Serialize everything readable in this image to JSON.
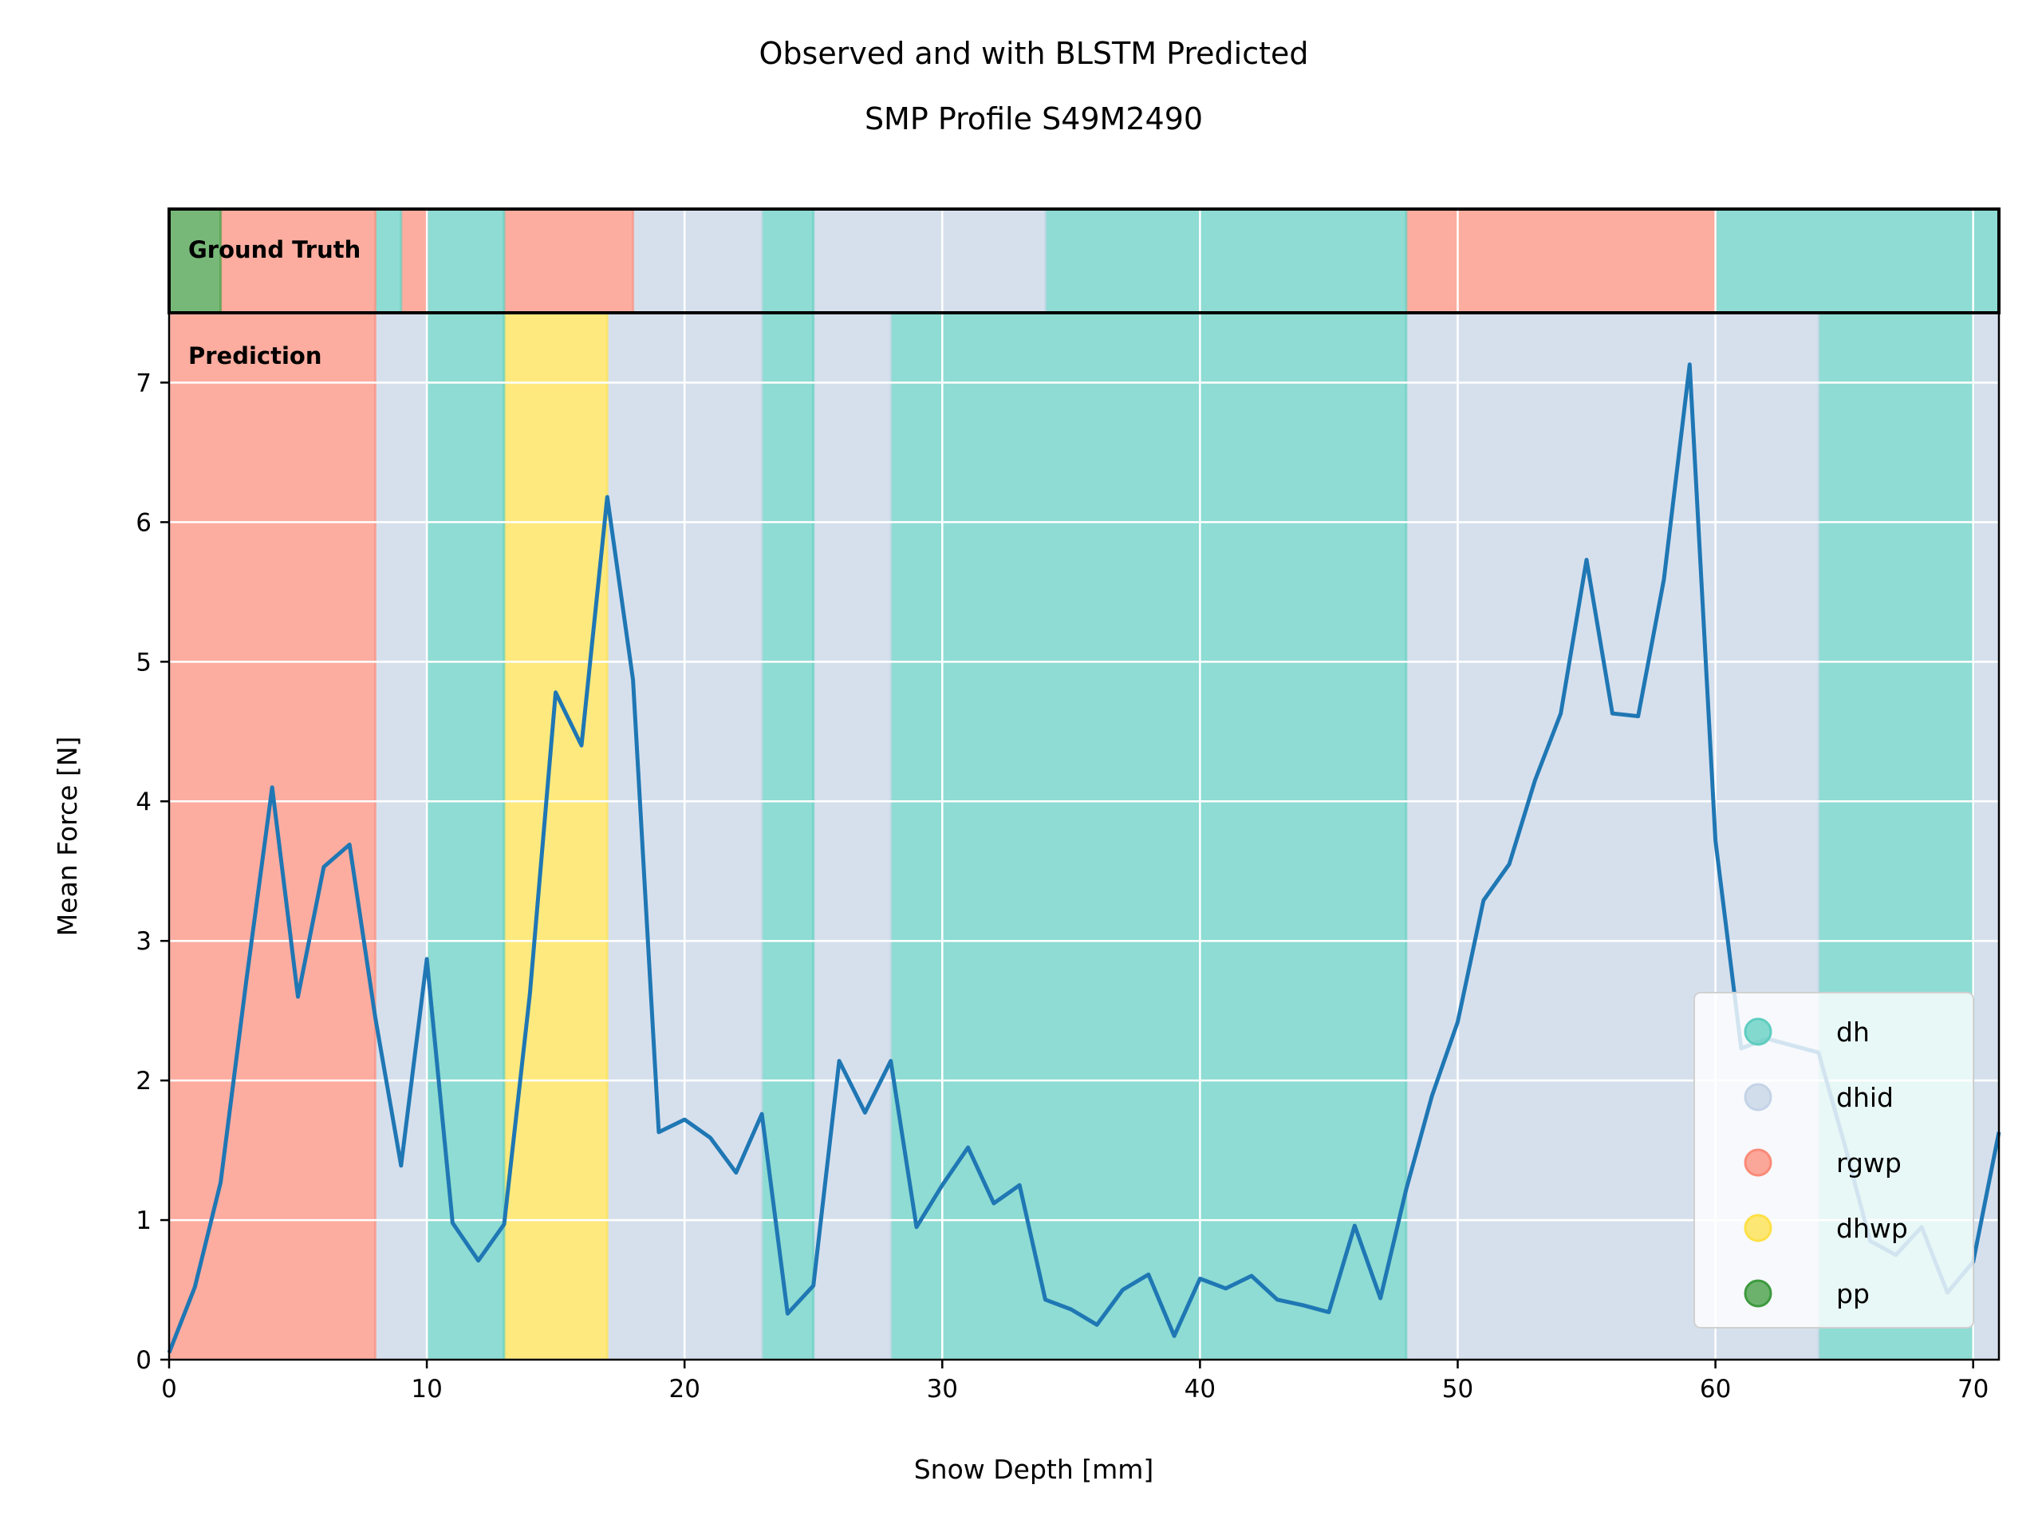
{
  "chart_data": {
    "type": "line",
    "title": [
      "Observed and with BLSTM Predicted",
      "SMP Profile S49M2490"
    ],
    "xlabel": "Snow Depth [mm]",
    "ylabel": "Mean Force [N]",
    "xlim": [
      0,
      71
    ],
    "ylim": [
      0,
      7.5
    ],
    "xticks": [
      "0",
      "10",
      "20",
      "30",
      "40",
      "50",
      "60",
      "70"
    ],
    "yticks": [
      "0",
      "1",
      "2",
      "3",
      "4",
      "5",
      "6",
      "7"
    ],
    "grid": true,
    "panel_labels": {
      "ground_truth": "Ground Truth",
      "prediction": "Prediction"
    },
    "legend": {
      "position": "lower-right",
      "entries": [
        {
          "label": "dh",
          "color": "#5ecdc0"
        },
        {
          "label": "dhid",
          "color": "#c4d3e6"
        },
        {
          "label": "rgwp",
          "color": "#fb8a78"
        },
        {
          "label": "dhwp",
          "color": "#fde047"
        },
        {
          "label": "pp",
          "color": "#3d9a3e"
        }
      ]
    },
    "ground_truth_segments": [
      {
        "start": 0,
        "end": 2,
        "class": "pp"
      },
      {
        "start": 2,
        "end": 8,
        "class": "rgwp"
      },
      {
        "start": 8,
        "end": 9,
        "class": "dh"
      },
      {
        "start": 9,
        "end": 10,
        "class": "rgwp"
      },
      {
        "start": 10,
        "end": 13,
        "class": "dh"
      },
      {
        "start": 13,
        "end": 18,
        "class": "rgwp"
      },
      {
        "start": 18,
        "end": 23,
        "class": "dhid"
      },
      {
        "start": 23,
        "end": 25,
        "class": "dh"
      },
      {
        "start": 25,
        "end": 34,
        "class": "dhid"
      },
      {
        "start": 34,
        "end": 48,
        "class": "dh"
      },
      {
        "start": 48,
        "end": 60,
        "class": "rgwp"
      },
      {
        "start": 60,
        "end": 71,
        "class": "dh"
      }
    ],
    "prediction_segments": [
      {
        "start": 0,
        "end": 8,
        "class": "rgwp"
      },
      {
        "start": 8,
        "end": 10,
        "class": "dhid"
      },
      {
        "start": 10,
        "end": 13,
        "class": "dh"
      },
      {
        "start": 13,
        "end": 17,
        "class": "dhwp"
      },
      {
        "start": 17,
        "end": 23,
        "class": "dhid"
      },
      {
        "start": 23,
        "end": 25,
        "class": "dh"
      },
      {
        "start": 25,
        "end": 28,
        "class": "dhid"
      },
      {
        "start": 28,
        "end": 48,
        "class": "dh"
      },
      {
        "start": 48,
        "end": 64,
        "class": "dhid"
      },
      {
        "start": 64,
        "end": 70,
        "class": "dh"
      },
      {
        "start": 70,
        "end": 71,
        "class": "dhid"
      }
    ],
    "series": [
      {
        "color": "#1f77b4",
        "x": [
          0,
          1,
          2,
          3,
          4,
          5,
          6,
          7,
          8,
          9,
          10,
          11,
          12,
          13,
          14,
          15,
          16,
          17,
          18,
          19,
          20,
          21,
          22,
          23,
          24,
          25,
          26,
          27,
          28,
          29,
          30,
          31,
          32,
          33,
          34,
          35,
          36,
          37,
          38,
          39,
          40,
          41,
          42,
          43,
          44,
          45,
          46,
          47,
          48,
          49,
          50,
          51,
          52,
          53,
          54,
          55,
          56,
          57,
          58,
          59,
          60,
          61,
          62,
          63,
          64,
          65,
          66,
          67,
          68,
          69,
          70,
          71
        ],
        "y": [
          0.05,
          0.52,
          1.27,
          2.72,
          4.1,
          2.6,
          3.53,
          3.69,
          2.45,
          1.39,
          2.87,
          0.98,
          0.71,
          0.97,
          2.62,
          4.78,
          4.4,
          6.18,
          4.87,
          1.63,
          1.72,
          1.59,
          1.34,
          1.76,
          0.33,
          0.53,
          2.14,
          1.77,
          2.14,
          0.95,
          1.25,
          1.52,
          1.12,
          1.25,
          0.43,
          0.36,
          0.25,
          0.5,
          0.61,
          0.17,
          0.58,
          0.51,
          0.6,
          0.43,
          0.39,
          0.34,
          0.96,
          0.44,
          1.22,
          1.89,
          2.42,
          3.29,
          3.55,
          4.15,
          4.63,
          5.73,
          4.63,
          4.61,
          5.59,
          7.13,
          3.72,
          2.23,
          2.3,
          2.25,
          2.2,
          1.55,
          0.85,
          0.75,
          0.95,
          0.48,
          0.7,
          1.63
        ]
      }
    ]
  }
}
